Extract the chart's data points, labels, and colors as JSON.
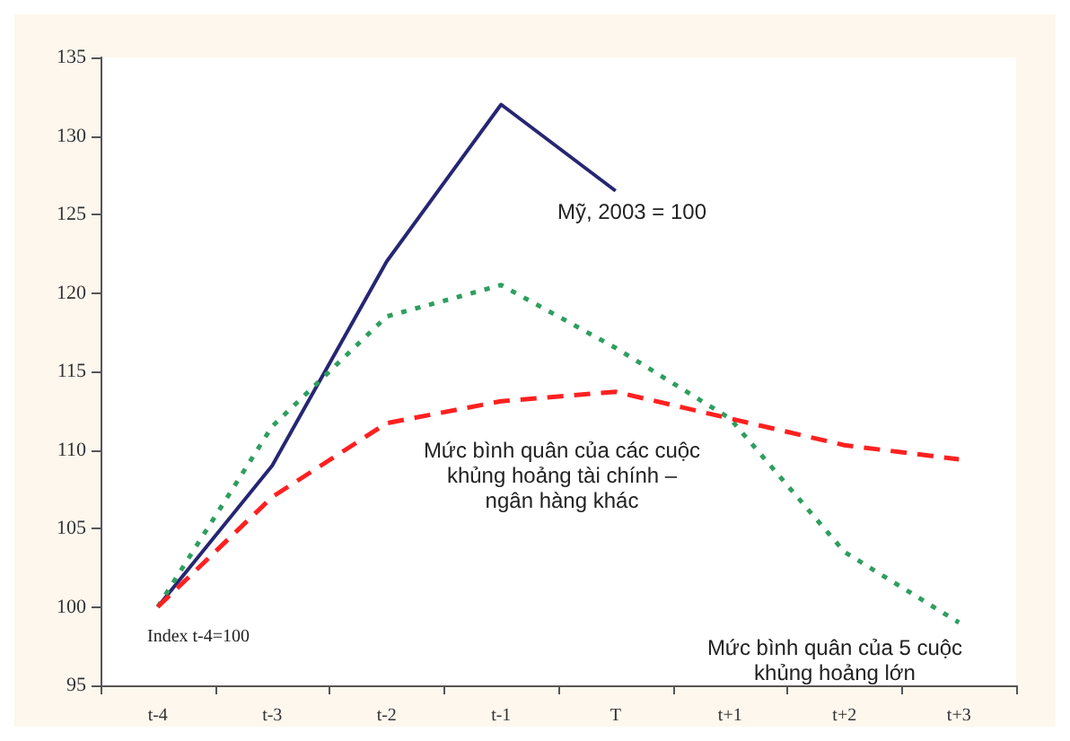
{
  "chart_data": {
    "type": "line",
    "categories": [
      "t-4",
      "t-3",
      "t-2",
      "t-1",
      "T",
      "t+1",
      "t+2",
      "t+3"
    ],
    "series": [
      {
        "color": "#262673",
        "line_style": "solid",
        "values": [
          100,
          109,
          122,
          132,
          126.5,
          null,
          null,
          null
        ]
      },
      {
        "color": "#2e9e5e",
        "line_style": "dotted",
        "values": [
          100,
          111.5,
          118.5,
          120.5,
          116.5,
          112,
          103.5,
          99
        ]
      },
      {
        "color": "#ff2020",
        "line_style": "dashed",
        "values": [
          100,
          107,
          111.7,
          113.1,
          113.7,
          112,
          110.3,
          109.4
        ]
      }
    ],
    "ylim": [
      95,
      135
    ],
    "yticks": [
      95,
      100,
      105,
      110,
      115,
      120,
      125,
      130,
      135
    ],
    "grid": false,
    "marker": "none",
    "annotations": [
      "Index t-4=100",
      "Mỹ, 2003 = 100",
      "Mức bình quân của các cuộc\nkhủng hoảng tài chính –\nngân hàng khác",
      "Mức bình quân của 5 cuộc\nkhủng hoảng lớn"
    ]
  }
}
